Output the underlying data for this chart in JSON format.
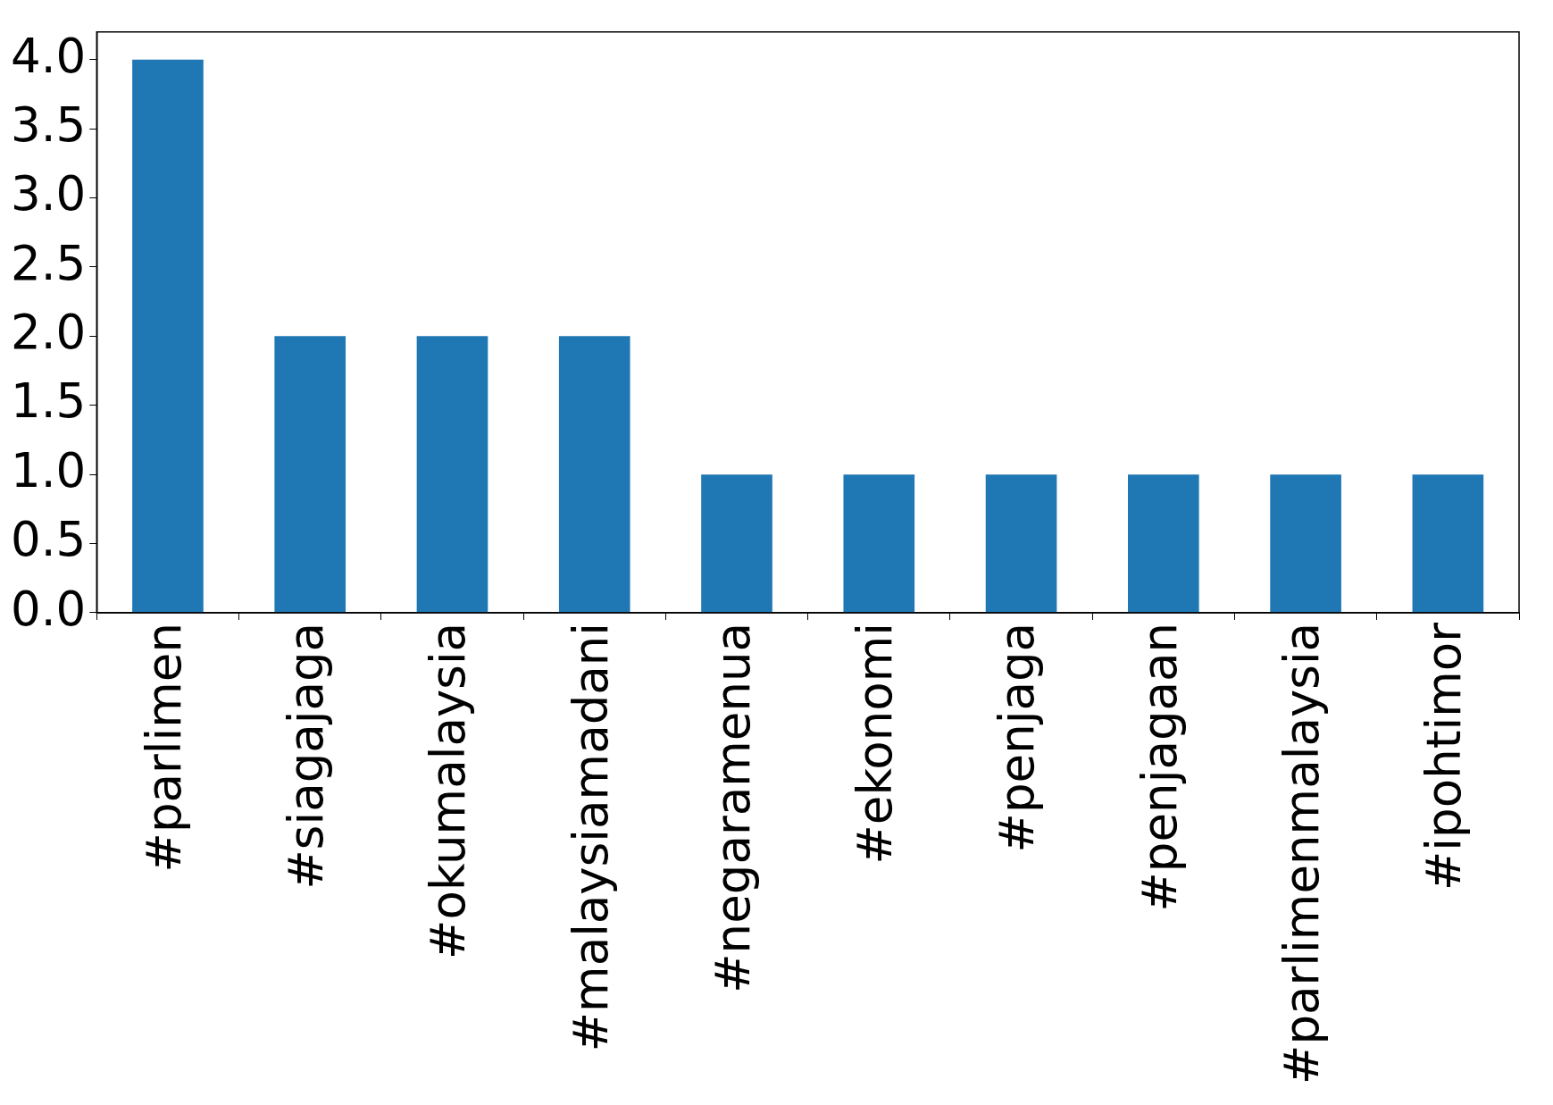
{
  "chart_data": {
    "type": "bar",
    "categories": [
      "#parlimen",
      "#siagajaga",
      "#okumalaysia",
      "#malaysiamadani",
      "#negaramenua",
      "#ekonomi",
      "#penjaga",
      "#penjagaan",
      "#parlimenmalaysia",
      "#ipohtimor"
    ],
    "values": [
      4,
      2,
      2,
      2,
      1,
      1,
      1,
      1,
      1,
      1
    ],
    "color": "#1f77b4",
    "ylim": [
      0,
      4.2
    ],
    "yticks": [
      {
        "value": 0,
        "label": "0.0"
      },
      {
        "value": 0.5,
        "label": "0.5"
      },
      {
        "value": 1,
        "label": "1.0"
      },
      {
        "value": 1.5,
        "label": "1.5"
      },
      {
        "value": 2,
        "label": "2.0"
      },
      {
        "value": 2.5,
        "label": "2.5"
      },
      {
        "value": 3,
        "label": "3.0"
      },
      {
        "value": 3.5,
        "label": "3.5"
      },
      {
        "value": 4,
        "label": "4.0"
      }
    ],
    "grid": false,
    "legend": false
  }
}
